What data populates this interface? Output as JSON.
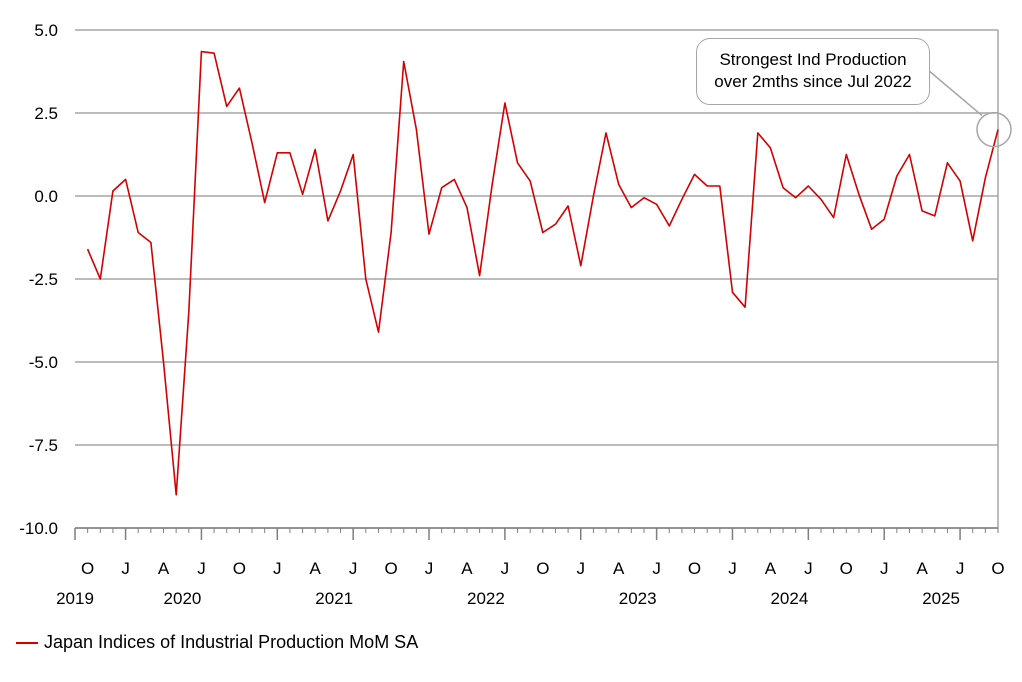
{
  "colors": {
    "series": "#d40000",
    "grid": "#a6a6a6",
    "axis": "#7f7f7f"
  },
  "callout": {
    "line1": "Strongest Ind Production",
    "line2": "over 2mths since Jul 2022"
  },
  "legend": {
    "label": "Japan Indices of Industrial Production MoM SA"
  },
  "chart_data": {
    "type": "line",
    "title": "",
    "xlabel": "",
    "ylabel": "",
    "ylim": [
      -10.0,
      5.0
    ],
    "yticks": [
      "5.0",
      "2.5",
      "0.0",
      "-2.5",
      "-5.0",
      "-7.5",
      "-10.0"
    ],
    "grid": true,
    "legend_position": "bottom-left",
    "x_month_labels": [
      "O",
      "J",
      "A",
      "J",
      "O",
      "J",
      "A",
      "J",
      "O",
      "J",
      "A",
      "J",
      "O",
      "J",
      "A",
      "J",
      "O",
      "J",
      "A",
      "J",
      "O",
      "J",
      "A",
      "J",
      "O"
    ],
    "x_year_labels": [
      "2019",
      "2020",
      "2021",
      "2022",
      "2023",
      "2024",
      "2025"
    ],
    "x_start": "2019-09",
    "series": [
      {
        "name": "Japan Indices of Industrial Production MoM SA",
        "values": [
          -1.6,
          -2.5,
          0.15,
          0.5,
          -1.1,
          -1.4,
          -5.0,
          -9.0,
          -3.5,
          4.35,
          4.3,
          2.7,
          3.25,
          1.6,
          -0.2,
          1.3,
          1.3,
          0.05,
          1.4,
          -0.75,
          0.15,
          1.25,
          -2.5,
          -4.1,
          -1.1,
          4.05,
          2.0,
          -1.15,
          0.25,
          0.5,
          -0.35,
          -2.4,
          0.35,
          2.8,
          1.0,
          0.45,
          -1.1,
          -0.85,
          -0.3,
          -2.1,
          0.0,
          1.9,
          0.35,
          -0.35,
          -0.05,
          -0.25,
          -0.9,
          -0.1,
          0.65,
          0.3,
          0.3,
          -2.9,
          -3.35,
          1.9,
          1.45,
          0.25,
          -0.05,
          0.3,
          -0.1,
          -0.65,
          1.25,
          0.05,
          -1.0,
          -0.7,
          0.6,
          1.25,
          -0.45,
          -0.6,
          1.0,
          0.45,
          -1.35,
          0.55,
          2.0
        ]
      }
    ]
  }
}
